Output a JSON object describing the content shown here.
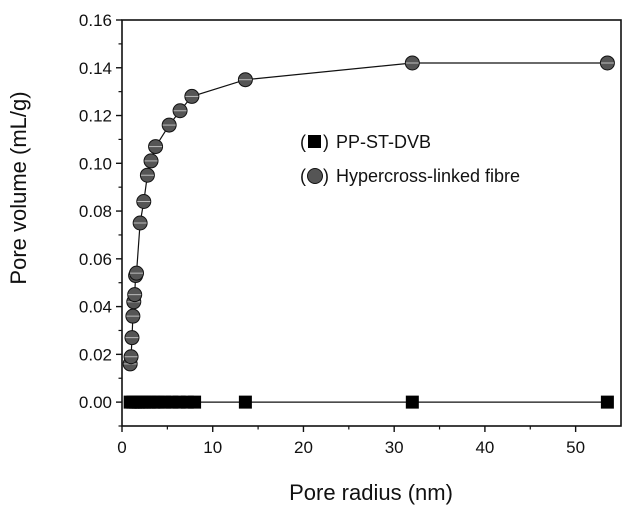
{
  "chart_data": {
    "type": "scatter",
    "xlabel": "Pore radius (nm)",
    "ylabel": "Pore volume (mL/g)",
    "xlim": [
      0,
      55
    ],
    "ylim": [
      -0.01,
      0.16
    ],
    "x_ticks": [
      0,
      10,
      20,
      30,
      40,
      50
    ],
    "y_ticks": [
      0.0,
      0.02,
      0.04,
      0.06,
      0.08,
      0.1,
      0.12,
      0.14,
      0.16
    ],
    "y_tick_labels": [
      "0.00",
      "0.02",
      "0.04",
      "0.06",
      "0.08",
      "0.10",
      "0.12",
      "0.14",
      "0.16"
    ],
    "x_tick_labels": [
      "0",
      "10",
      "20",
      "30",
      "40",
      "50"
    ],
    "grid": false,
    "legend_position": "right-middle",
    "legend_open": "(",
    "legend_close": ")",
    "series": [
      {
        "name": "PP-ST-DVB",
        "marker": "square",
        "color": "#000000",
        "x": [
          0.9,
          1.2,
          1.5,
          1.8,
          2.1,
          2.5,
          3.0,
          3.5,
          4.0,
          4.7,
          5.5,
          6.3,
          7.2,
          8.0,
          13.6,
          32.0,
          53.5
        ],
        "y": [
          0,
          0,
          0,
          0,
          0,
          0,
          0,
          0,
          0,
          0,
          0,
          0,
          0,
          0,
          0,
          0,
          0
        ]
      },
      {
        "name": "Hypercross-linked fibre",
        "marker": "circle",
        "color": "#555555",
        "x": [
          0.9,
          1.0,
          1.1,
          1.2,
          1.3,
          1.4,
          1.5,
          1.6,
          2.0,
          2.4,
          2.8,
          3.2,
          3.7,
          5.2,
          6.4,
          7.7,
          13.6,
          32.0,
          53.5
        ],
        "y": [
          0.016,
          0.019,
          0.027,
          0.036,
          0.042,
          0.045,
          0.053,
          0.054,
          0.075,
          0.084,
          0.095,
          0.101,
          0.107,
          0.116,
          0.122,
          0.128,
          0.135,
          0.142,
          0.142
        ]
      }
    ]
  }
}
